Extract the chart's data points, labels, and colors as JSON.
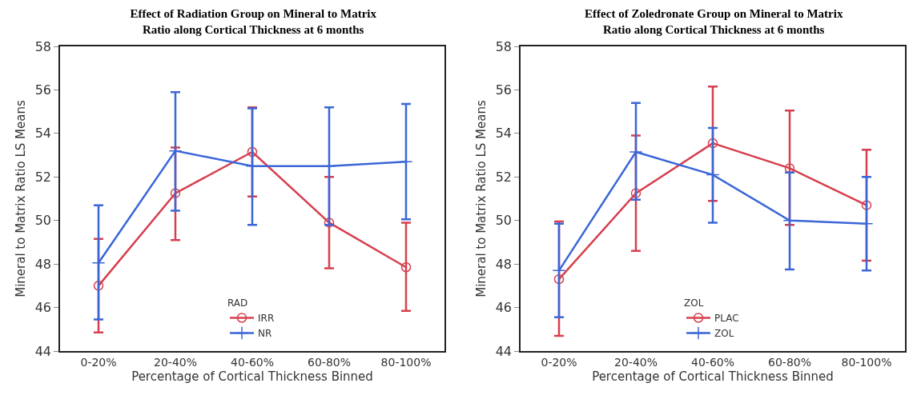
{
  "chart_data": [
    {
      "type": "line",
      "title": "Effect of Radiation Group on Mineral to Matrix\nRatio along Cortical Thickness at 6 months",
      "xlabel": "Percentage of Cortical Thickness Binned",
      "ylabel": "Mineral to Matrix Ratio LS Means",
      "legend_title": "RAD",
      "categories": [
        "0-20%",
        "20-40%",
        "40-60%",
        "60-80%",
        "80-100%"
      ],
      "series": [
        {
          "name": "IRR",
          "color": "#d6404e",
          "marker": "circle",
          "values": [
            47.0,
            51.25,
            53.15,
            49.9,
            47.85
          ],
          "errors": [
            [
              44.85,
              49.15
            ],
            [
              49.1,
              53.35
            ],
            [
              51.1,
              55.2
            ],
            [
              47.8,
              52.0
            ],
            [
              45.85,
              49.9
            ]
          ]
        },
        {
          "name": "NR",
          "color": "#3a66d8",
          "marker": "cross",
          "values": [
            48.05,
            53.2,
            52.5,
            52.5,
            52.7
          ],
          "errors": [
            [
              45.45,
              50.7
            ],
            [
              50.45,
              55.9
            ],
            [
              49.8,
              55.15
            ],
            [
              49.8,
              55.2
            ],
            [
              50.05,
              55.35
            ]
          ]
        }
      ],
      "ylim": [
        44,
        58
      ],
      "yticks": [
        44,
        46,
        48,
        50,
        52,
        54,
        56,
        58
      ],
      "grid": false,
      "legend": "bottom",
      "line_style": "solid"
    },
    {
      "type": "line",
      "title": "Effect of Zoledronate Group on Mineral to Matrix\nRatio along Cortical Thickness at 6 months",
      "xlabel": "Percentage of Cortical Thickness Binned",
      "ylabel": "Mineral to Matrix Ratio LS Means",
      "legend_title": "ZOL",
      "categories": [
        "0-20%",
        "20-40%",
        "40-60%",
        "60-80%",
        "80-100%"
      ],
      "series": [
        {
          "name": "PLAC",
          "color": "#d6404e",
          "marker": "circle",
          "values": [
            47.3,
            51.25,
            53.55,
            52.4,
            50.7
          ],
          "errors": [
            [
              44.7,
              49.95
            ],
            [
              48.6,
              53.9
            ],
            [
              50.9,
              56.15
            ],
            [
              49.8,
              55.05
            ],
            [
              48.15,
              53.25
            ]
          ]
        },
        {
          "name": "ZOL",
          "color": "#3a66d8",
          "marker": "cross",
          "values": [
            47.7,
            53.15,
            52.1,
            50.0,
            49.85
          ],
          "errors": [
            [
              45.55,
              49.85
            ],
            [
              50.95,
              55.4
            ],
            [
              49.9,
              54.25
            ],
            [
              47.75,
              52.2
            ],
            [
              47.7,
              52.0
            ]
          ]
        }
      ],
      "ylim": [
        44,
        58
      ],
      "yticks": [
        44,
        46,
        48,
        50,
        52,
        54,
        56,
        58
      ],
      "grid": false,
      "legend": "bottom",
      "line_style": "solid"
    }
  ]
}
